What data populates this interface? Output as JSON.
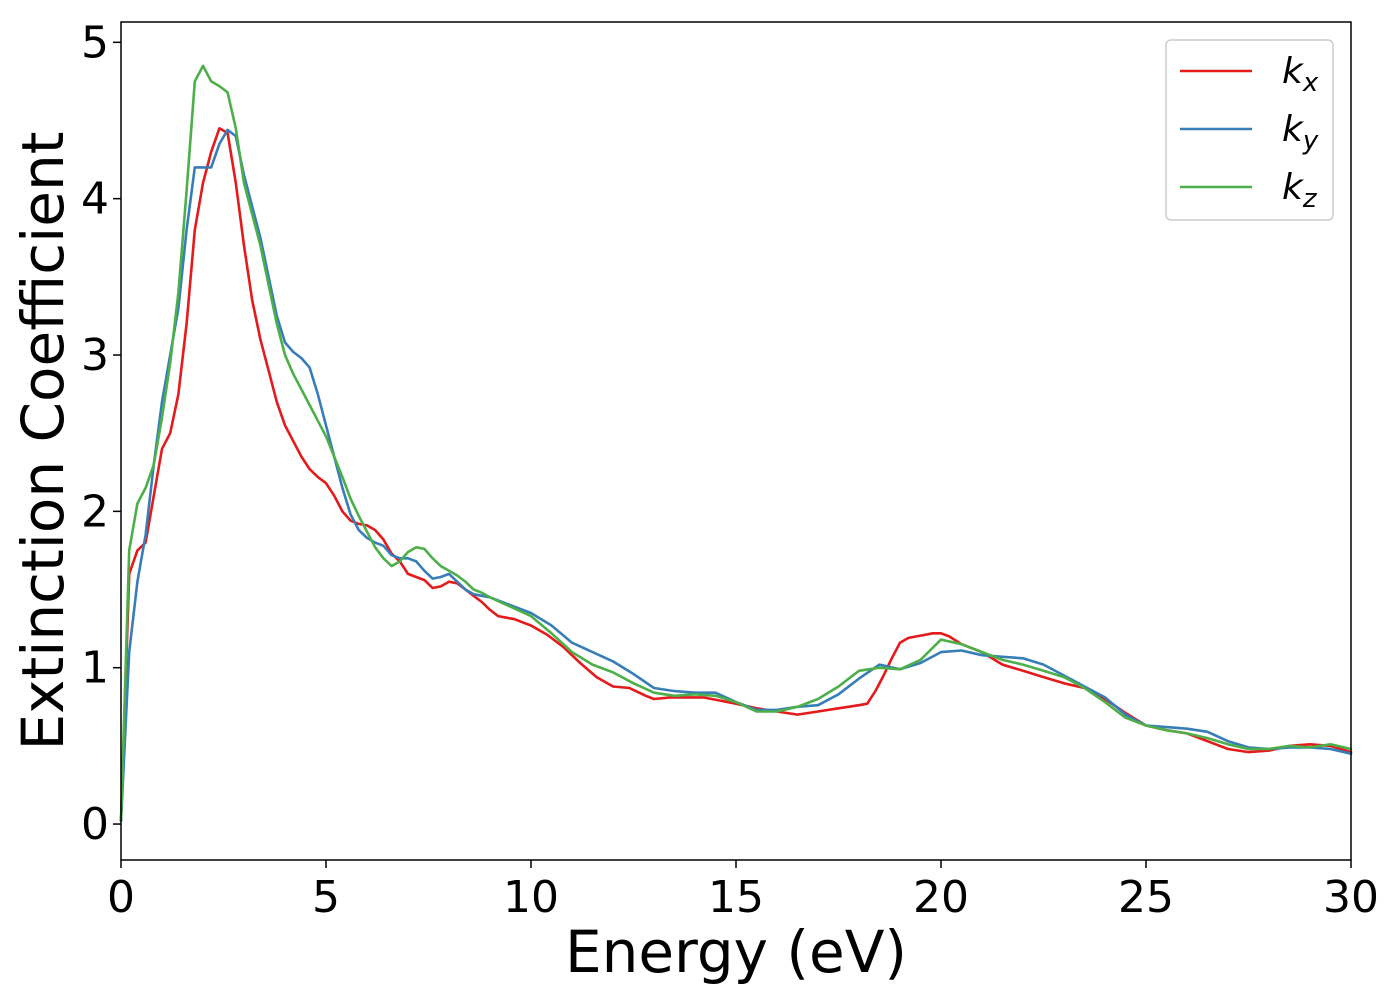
{
  "chart_data": {
    "type": "line",
    "xlabel": "Energy (eV)",
    "ylabel": "Extinction Coefficient",
    "xlim": [
      0,
      30
    ],
    "ylim": [
      -0.23,
      5.13
    ],
    "xticks": [
      0,
      5,
      10,
      15,
      20,
      25,
      30
    ],
    "xtick_labels": [
      "0",
      "5",
      "10",
      "15",
      "20",
      "25",
      "30"
    ],
    "yticks": [
      0,
      1,
      2,
      3,
      4,
      5
    ],
    "ytick_labels": [
      "0",
      "1",
      "2",
      "3",
      "4",
      "5"
    ],
    "grid": false,
    "legend_position": "top-right",
    "series": [
      {
        "name": "k",
        "subscript": "x",
        "color": "#e41a1c",
        "x": [
          0,
          0.2,
          0.4,
          0.6,
          0.8,
          1.0,
          1.2,
          1.4,
          1.6,
          1.8,
          2.0,
          2.2,
          2.4,
          2.6,
          2.8,
          3.0,
          3.2,
          3.4,
          3.6,
          3.8,
          4.0,
          4.2,
          4.4,
          4.6,
          4.8,
          5.0,
          5.2,
          5.4,
          5.6,
          5.8,
          6.0,
          6.2,
          6.4,
          6.6,
          6.8,
          7.0,
          7.2,
          7.4,
          7.6,
          7.8,
          8.0,
          8.2,
          8.4,
          8.6,
          8.8,
          9.0,
          9.2,
          9.4,
          9.6,
          9.8,
          10.0,
          10.4,
          10.8,
          11.2,
          11.6,
          12.0,
          12.4,
          12.8,
          13.0,
          13.4,
          13.8,
          14.2,
          14.6,
          15.0,
          15.5,
          16.0,
          16.5,
          17.0,
          17.5,
          18.0,
          18.2,
          18.4,
          18.6,
          18.8,
          19.0,
          19.2,
          19.4,
          19.6,
          19.8,
          20.0,
          20.2,
          20.5,
          21.0,
          21.5,
          22.0,
          22.5,
          23.0,
          23.5,
          24.0,
          24.5,
          25.0,
          25.5,
          26.0,
          26.5,
          27.0,
          27.5,
          28.0,
          28.5,
          29.0,
          29.5,
          30.0
        ],
        "y": [
          0.02,
          1.6,
          1.75,
          1.8,
          2.1,
          2.4,
          2.5,
          2.75,
          3.2,
          3.8,
          4.1,
          4.3,
          4.45,
          4.42,
          4.1,
          3.7,
          3.35,
          3.1,
          2.9,
          2.7,
          2.55,
          2.45,
          2.35,
          2.27,
          2.22,
          2.18,
          2.1,
          2.0,
          1.94,
          1.92,
          1.91,
          1.88,
          1.82,
          1.73,
          1.68,
          1.6,
          1.58,
          1.56,
          1.51,
          1.52,
          1.55,
          1.54,
          1.5,
          1.46,
          1.42,
          1.37,
          1.33,
          1.32,
          1.31,
          1.29,
          1.27,
          1.21,
          1.13,
          1.03,
          0.94,
          0.88,
          0.87,
          0.82,
          0.8,
          0.81,
          0.81,
          0.81,
          0.79,
          0.77,
          0.74,
          0.72,
          0.7,
          0.72,
          0.74,
          0.76,
          0.77,
          0.85,
          0.95,
          1.06,
          1.16,
          1.19,
          1.2,
          1.21,
          1.22,
          1.22,
          1.2,
          1.15,
          1.1,
          1.02,
          0.98,
          0.94,
          0.9,
          0.87,
          0.8,
          0.71,
          0.63,
          0.6,
          0.58,
          0.53,
          0.48,
          0.46,
          0.47,
          0.5,
          0.51,
          0.5,
          0.46
        ]
      },
      {
        "name": "k",
        "subscript": "y",
        "color": "#377eb8",
        "x": [
          0,
          0.2,
          0.4,
          0.6,
          0.8,
          1.0,
          1.2,
          1.4,
          1.6,
          1.8,
          2.0,
          2.2,
          2.4,
          2.6,
          2.8,
          3.0,
          3.2,
          3.4,
          3.6,
          3.8,
          4.0,
          4.2,
          4.4,
          4.6,
          4.8,
          5.0,
          5.2,
          5.4,
          5.6,
          5.8,
          6.0,
          6.2,
          6.4,
          6.6,
          6.8,
          7.0,
          7.2,
          7.4,
          7.6,
          7.8,
          8.0,
          8.2,
          8.4,
          8.6,
          8.8,
          9.0,
          9.5,
          10.0,
          10.5,
          11.0,
          11.5,
          12.0,
          12.5,
          13.0,
          13.5,
          14.0,
          14.5,
          15.0,
          15.5,
          16.0,
          16.5,
          17.0,
          17.5,
          18.0,
          18.5,
          19.0,
          19.5,
          20.0,
          20.5,
          21.0,
          21.5,
          22.0,
          22.5,
          23.0,
          23.5,
          24.0,
          24.5,
          25.0,
          25.5,
          26.0,
          26.5,
          27.0,
          27.5,
          28.0,
          28.5,
          29.0,
          29.5,
          30.0
        ],
        "y": [
          0.02,
          1.1,
          1.55,
          1.85,
          2.3,
          2.7,
          3.0,
          3.3,
          3.8,
          4.2,
          4.2,
          4.2,
          4.35,
          4.44,
          4.4,
          4.15,
          3.95,
          3.75,
          3.5,
          3.25,
          3.08,
          3.02,
          2.98,
          2.92,
          2.75,
          2.55,
          2.35,
          2.15,
          1.98,
          1.88,
          1.83,
          1.8,
          1.78,
          1.72,
          1.7,
          1.7,
          1.68,
          1.62,
          1.57,
          1.58,
          1.6,
          1.55,
          1.5,
          1.47,
          1.46,
          1.45,
          1.4,
          1.35,
          1.27,
          1.16,
          1.1,
          1.04,
          0.96,
          0.87,
          0.85,
          0.84,
          0.84,
          0.78,
          0.73,
          0.73,
          0.75,
          0.76,
          0.83,
          0.93,
          1.02,
          0.99,
          1.03,
          1.1,
          1.11,
          1.08,
          1.07,
          1.06,
          1.02,
          0.95,
          0.88,
          0.81,
          0.7,
          0.63,
          0.62,
          0.61,
          0.59,
          0.53,
          0.49,
          0.48,
          0.49,
          0.49,
          0.48,
          0.45
        ]
      },
      {
        "name": "k",
        "subscript": "z",
        "color": "#4daf4a",
        "x": [
          0,
          0.2,
          0.4,
          0.6,
          0.8,
          1.0,
          1.2,
          1.4,
          1.6,
          1.8,
          2.0,
          2.2,
          2.4,
          2.6,
          2.8,
          3.0,
          3.2,
          3.4,
          3.6,
          3.8,
          4.0,
          4.2,
          4.4,
          4.6,
          4.8,
          5.0,
          5.2,
          5.4,
          5.6,
          5.8,
          6.0,
          6.2,
          6.4,
          6.6,
          6.8,
          7.0,
          7.2,
          7.4,
          7.6,
          7.8,
          8.0,
          8.2,
          8.4,
          8.6,
          8.8,
          9.0,
          9.5,
          10.0,
          10.5,
          11.0,
          11.5,
          12.0,
          12.5,
          13.0,
          13.5,
          14.0,
          14.5,
          15.0,
          15.5,
          16.0,
          16.5,
          17.0,
          17.5,
          18.0,
          18.5,
          19.0,
          19.5,
          20.0,
          20.5,
          21.0,
          21.5,
          22.0,
          22.5,
          23.0,
          23.5,
          24.0,
          24.5,
          25.0,
          25.5,
          26.0,
          26.5,
          27.0,
          27.5,
          28.0,
          28.5,
          29.0,
          29.5,
          30.0
        ],
        "y": [
          0.02,
          1.75,
          2.05,
          2.15,
          2.3,
          2.6,
          2.95,
          3.4,
          4.05,
          4.75,
          4.85,
          4.75,
          4.72,
          4.68,
          4.45,
          4.1,
          3.9,
          3.7,
          3.45,
          3.2,
          3.0,
          2.88,
          2.78,
          2.68,
          2.58,
          2.48,
          2.35,
          2.22,
          2.08,
          1.97,
          1.87,
          1.77,
          1.7,
          1.65,
          1.68,
          1.74,
          1.77,
          1.76,
          1.7,
          1.65,
          1.62,
          1.59,
          1.55,
          1.5,
          1.48,
          1.45,
          1.39,
          1.33,
          1.22,
          1.1,
          1.02,
          0.97,
          0.9,
          0.84,
          0.82,
          0.83,
          0.82,
          0.78,
          0.72,
          0.72,
          0.75,
          0.8,
          0.88,
          0.98,
          1.0,
          0.99,
          1.05,
          1.18,
          1.15,
          1.1,
          1.05,
          1.02,
          0.98,
          0.94,
          0.87,
          0.78,
          0.68,
          0.63,
          0.6,
          0.58,
          0.55,
          0.51,
          0.48,
          0.48,
          0.5,
          0.49,
          0.51,
          0.48
        ]
      }
    ]
  }
}
